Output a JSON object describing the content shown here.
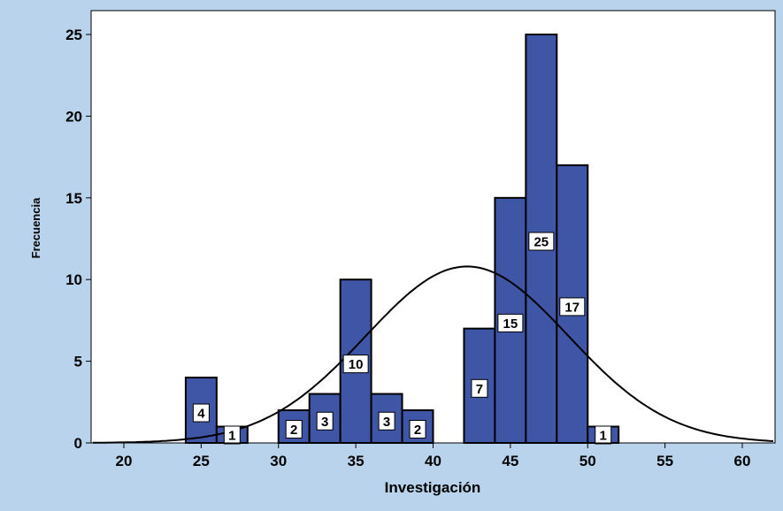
{
  "chart_data": {
    "type": "histogram",
    "xlabel": "Investigación",
    "ylabel": "Frecuencia",
    "xlim": [
      18,
      62
    ],
    "ylim": [
      0,
      26
    ],
    "xticks": [
      20,
      25,
      30,
      35,
      40,
      45,
      50,
      55,
      60
    ],
    "yticks": [
      0,
      5,
      10,
      15,
      20,
      25
    ],
    "bin_width": 2,
    "bins": [
      {
        "start": 24,
        "count": 4
      },
      {
        "start": 26,
        "count": 1
      },
      {
        "start": 30,
        "count": 2
      },
      {
        "start": 32,
        "count": 3
      },
      {
        "start": 34,
        "count": 10
      },
      {
        "start": 36,
        "count": 3
      },
      {
        "start": 38,
        "count": 2
      },
      {
        "start": 42,
        "count": 7
      },
      {
        "start": 44,
        "count": 15
      },
      {
        "start": 46,
        "count": 25
      },
      {
        "start": 48,
        "count": 17
      },
      {
        "start": 50,
        "count": 1
      }
    ],
    "normal_curve": {
      "mean": 42.2,
      "sd": 6.55,
      "peak": 10.8
    },
    "grid": false,
    "colors": {
      "bar": "#3f55a5",
      "bar_stroke": "#000000",
      "background": "#b9d3ec",
      "plot": "#ffffff",
      "curve": "#000000"
    }
  }
}
